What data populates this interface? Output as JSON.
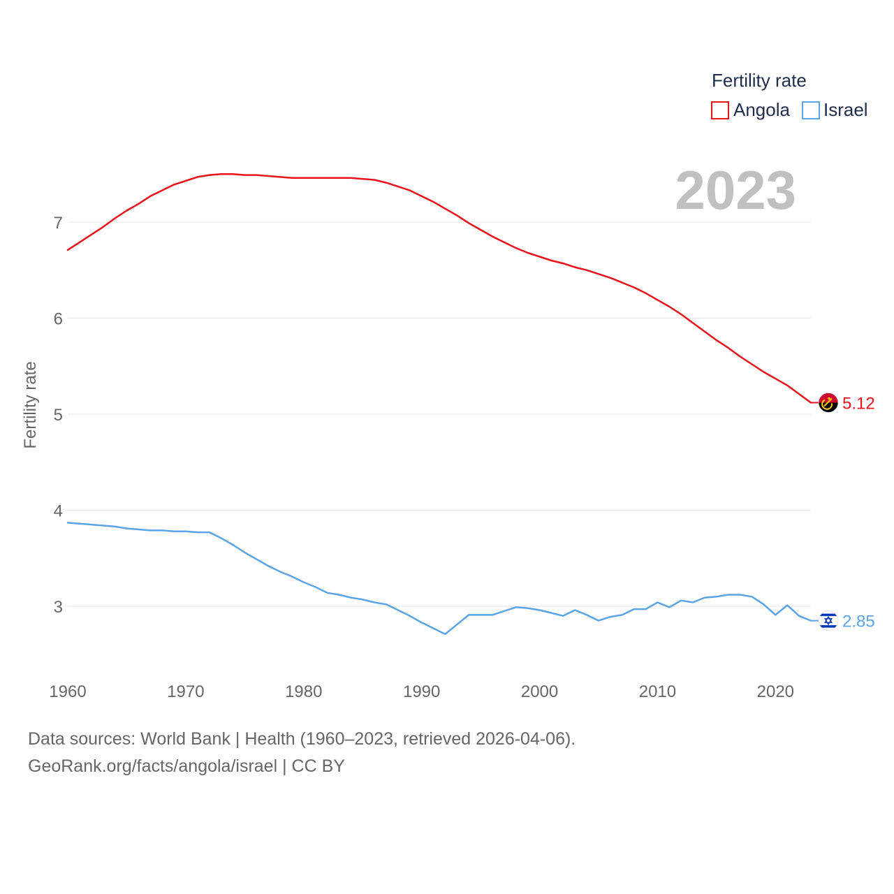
{
  "chart_data": {
    "type": "line",
    "ylabel": "Fertility rate",
    "xlabel": "",
    "xlim": [
      1960,
      2023
    ],
    "ylim": [
      2.3,
      7.8
    ],
    "x_ticks": [
      1960,
      1970,
      1980,
      1990,
      2000,
      2010,
      2020
    ],
    "y_ticks": [
      3,
      4,
      5,
      6,
      7
    ],
    "grid": true,
    "year_label": "2023",
    "legend": {
      "title": "Fertility rate",
      "position": "top-right"
    },
    "x": [
      1960,
      1961,
      1962,
      1963,
      1964,
      1965,
      1966,
      1967,
      1968,
      1969,
      1970,
      1971,
      1972,
      1973,
      1974,
      1975,
      1976,
      1977,
      1978,
      1979,
      1980,
      1981,
      1982,
      1983,
      1984,
      1985,
      1986,
      1987,
      1988,
      1989,
      1990,
      1991,
      1992,
      1993,
      1994,
      1995,
      1996,
      1997,
      1998,
      1999,
      2000,
      2001,
      2002,
      2003,
      2004,
      2005,
      2006,
      2007,
      2008,
      2009,
      2010,
      2011,
      2012,
      2013,
      2014,
      2015,
      2016,
      2017,
      2018,
      2019,
      2020,
      2021,
      2022,
      2023
    ],
    "series": [
      {
        "name": "Angola",
        "color": "#e8141b",
        "flag": "angola-flag",
        "end_label": "5.12",
        "values": [
          6.71,
          6.79,
          6.87,
          6.95,
          7.04,
          7.12,
          7.19,
          7.27,
          7.33,
          7.39,
          7.43,
          7.47,
          7.49,
          7.5,
          7.5,
          7.49,
          7.49,
          7.48,
          7.47,
          7.46,
          7.46,
          7.46,
          7.46,
          7.46,
          7.46,
          7.45,
          7.44,
          7.41,
          7.37,
          7.33,
          7.27,
          7.21,
          7.14,
          7.07,
          6.99,
          6.92,
          6.85,
          6.79,
          6.73,
          6.68,
          6.64,
          6.6,
          6.57,
          6.53,
          6.5,
          6.46,
          6.42,
          6.37,
          6.32,
          6.26,
          6.19,
          6.12,
          6.04,
          5.95,
          5.86,
          5.77,
          5.69,
          5.6,
          5.52,
          5.44,
          5.37,
          5.3,
          5.21,
          5.12
        ]
      },
      {
        "name": "Israel",
        "color": "#5ba4e5",
        "flag": "israel-flag",
        "end_label": "2.85",
        "values": [
          3.87,
          3.86,
          3.85,
          3.84,
          3.83,
          3.81,
          3.8,
          3.79,
          3.79,
          3.78,
          3.78,
          3.77,
          3.77,
          3.71,
          3.64,
          3.56,
          3.49,
          3.42,
          3.36,
          3.31,
          3.25,
          3.2,
          3.14,
          3.12,
          3.09,
          3.07,
          3.04,
          3.02,
          2.96,
          2.9,
          2.83,
          2.77,
          2.71,
          2.81,
          2.91,
          2.91,
          2.91,
          2.95,
          2.99,
          2.98,
          2.96,
          2.93,
          2.9,
          2.96,
          2.91,
          2.85,
          2.89,
          2.91,
          2.97,
          2.97,
          3.04,
          2.99,
          3.06,
          3.04,
          3.09,
          3.1,
          3.12,
          3.12,
          3.1,
          3.02,
          2.91,
          3.01,
          2.9,
          2.85
        ]
      }
    ]
  },
  "footer": {
    "line1": "Data sources: World Bank | Health (1960–2023, retrieved 2026-04-06).",
    "line2": "GeoRank.org/facts/angola/israel | CC BY"
  }
}
